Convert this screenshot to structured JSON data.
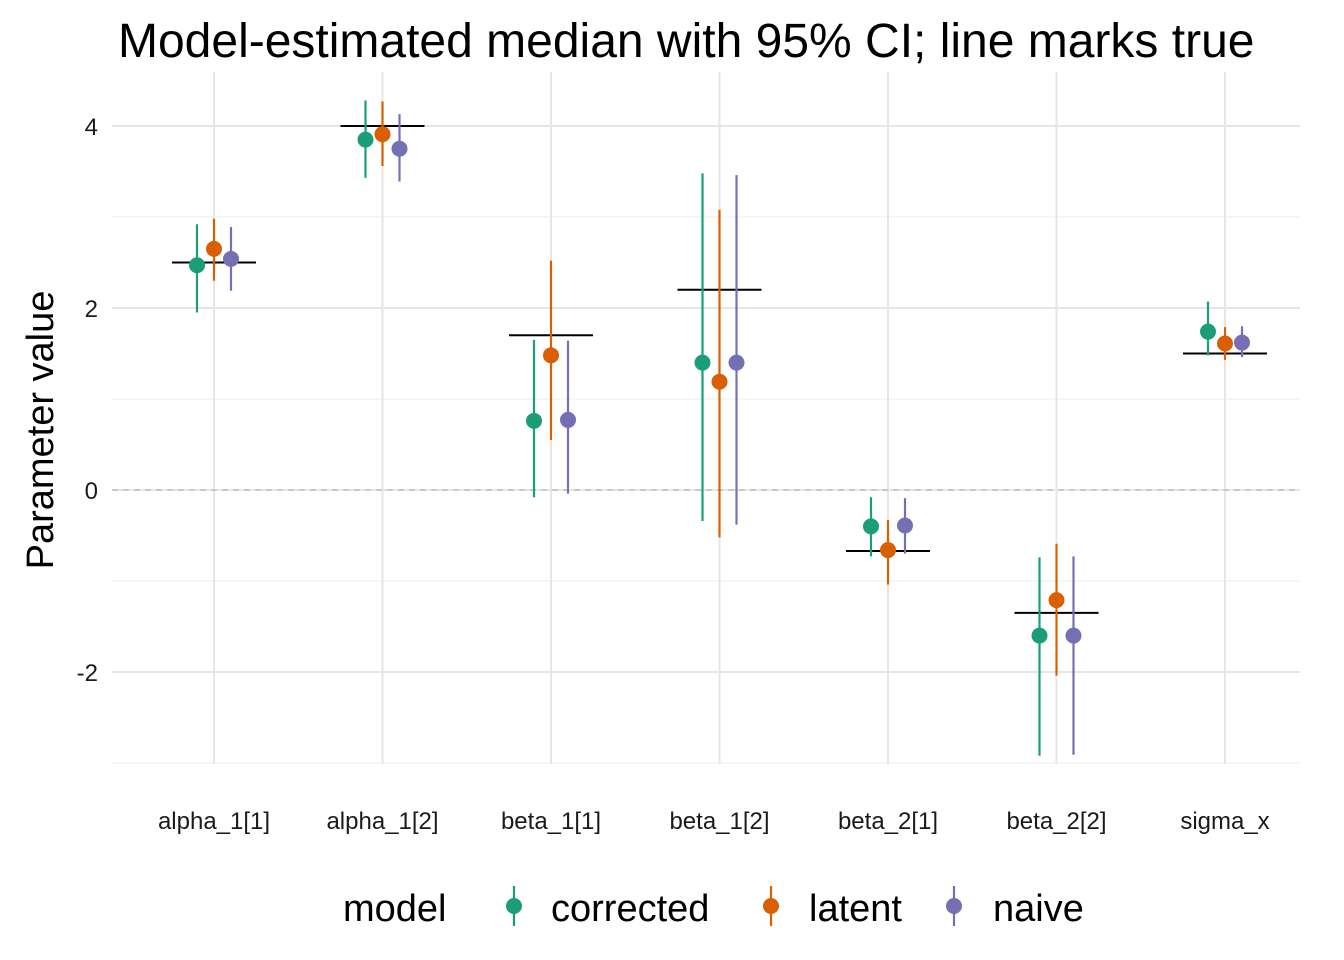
{
  "chart_data": {
    "type": "scatter",
    "title": "Model-estimated median with 95% CI; line marks true",
    "xlabel": "",
    "ylabel": "Parameter value",
    "categories": [
      "alpha_1[1]",
      "alpha_1[2]",
      "beta_1[1]",
      "beta_1[2]",
      "beta_2[1]",
      "beta_2[2]",
      "sigma_x"
    ],
    "ylim": [
      -3.2,
      4.6
    ],
    "yticks": [
      -2,
      0,
      2,
      4
    ],
    "grid": true,
    "reference_line_y": 0,
    "true_values": [
      2.5,
      4.0,
      1.7,
      2.2,
      -0.67,
      -1.35,
      1.5
    ],
    "legend": {
      "title": "model",
      "position": "bottom"
    },
    "series": [
      {
        "name": "corrected",
        "color": "#1B9E77",
        "median": [
          2.47,
          3.85,
          0.76,
          1.4,
          -0.4,
          -1.6,
          1.74
        ],
        "lower": [
          1.95,
          3.43,
          -0.08,
          -0.34,
          -0.73,
          -2.92,
          1.48
        ],
        "upper": [
          2.92,
          4.28,
          1.65,
          3.48,
          -0.08,
          -0.74,
          2.07
        ]
      },
      {
        "name": "latent",
        "color": "#D95F02",
        "median": [
          2.65,
          3.91,
          1.48,
          1.19,
          -0.66,
          -1.21,
          1.61
        ],
        "lower": [
          2.3,
          3.56,
          0.55,
          -0.52,
          -1.04,
          -2.04,
          1.43
        ],
        "upper": [
          2.98,
          4.27,
          2.52,
          3.08,
          -0.33,
          -0.59,
          1.79
        ]
      },
      {
        "name": "naive",
        "color": "#7570B3",
        "median": [
          2.54,
          3.75,
          0.77,
          1.4,
          -0.39,
          -1.6,
          1.62
        ],
        "lower": [
          2.19,
          3.39,
          -0.04,
          -0.38,
          -0.7,
          -2.91,
          1.46
        ],
        "upper": [
          2.89,
          4.13,
          1.64,
          3.46,
          -0.09,
          -0.73,
          1.8
        ]
      }
    ]
  }
}
